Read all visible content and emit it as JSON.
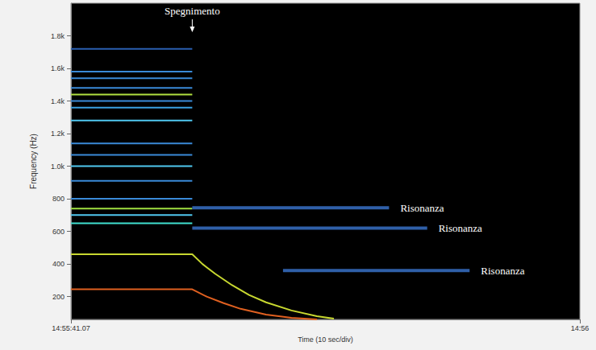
{
  "chart_data": {
    "type": "line",
    "xlabel": "Time (10 sec/div)",
    "ylabel": "Frequency (Hz)",
    "xlim": [
      0,
      60
    ],
    "xticks": [
      {
        "value": 0,
        "label": "14:55:41.07"
      },
      {
        "value": 60,
        "label": "14:56"
      }
    ],
    "ylim": [
      60,
      2000
    ],
    "yticks": [
      200,
      400,
      600,
      800,
      {
        "value": 1000,
        "label": "1.0k"
      },
      {
        "value": 1200,
        "label": "1.2k"
      },
      {
        "value": 1400,
        "label": "1.4k"
      },
      {
        "value": 1600,
        "label": "1.6k"
      },
      {
        "value": 1800,
        "label": "1.8k"
      }
    ],
    "grid": false,
    "annotations": [
      {
        "text": "Spegnimento",
        "x": 14.3
      }
    ],
    "series": [
      {
        "color": "#2a5fb0",
        "x": [
          0,
          14.3
        ],
        "values": [
          1720,
          1720
        ]
      },
      {
        "color": "#3a8ad8",
        "x": [
          0,
          14.3
        ],
        "values": [
          1580,
          1580
        ]
      },
      {
        "color": "#3a8ad8",
        "x": [
          0,
          14.3
        ],
        "values": [
          1540,
          1540
        ]
      },
      {
        "color": "#3a8ad8",
        "x": [
          0,
          14.3
        ],
        "values": [
          1480,
          1480
        ]
      },
      {
        "color": "#b0e040",
        "x": [
          0,
          14.3
        ],
        "values": [
          1440,
          1440
        ]
      },
      {
        "color": "#3a8ad8",
        "x": [
          0,
          14.3
        ],
        "values": [
          1400,
          1400
        ]
      },
      {
        "color": "#3aa0e0",
        "x": [
          0,
          14.3
        ],
        "values": [
          1360,
          1360
        ]
      },
      {
        "color": "#50c8f0",
        "x": [
          0,
          14.3
        ],
        "values": [
          1280,
          1280
        ]
      },
      {
        "color": "#3a8ad8",
        "x": [
          0,
          14.3
        ],
        "values": [
          1140,
          1140
        ]
      },
      {
        "color": "#3a8ad8",
        "x": [
          0,
          14.3
        ],
        "values": [
          1070,
          1070
        ]
      },
      {
        "color": "#50c8f0",
        "x": [
          0,
          14.3
        ],
        "values": [
          1000,
          1000
        ]
      },
      {
        "color": "#3a8ad8",
        "x": [
          0,
          14.3
        ],
        "values": [
          910,
          910
        ]
      },
      {
        "color": "#3a8ad8",
        "x": [
          0,
          14.3
        ],
        "values": [
          800,
          800
        ]
      },
      {
        "color": "#a0e040",
        "x": [
          0,
          14.3
        ],
        "values": [
          740,
          740
        ]
      },
      {
        "color": "#50c8f0",
        "x": [
          0,
          14.3
        ],
        "values": [
          700,
          700
        ]
      },
      {
        "color": "#40e0d0",
        "x": [
          0,
          14.3
        ],
        "values": [
          650,
          650
        ]
      },
      {
        "color": "#c8d830",
        "x": [
          0,
          14.3,
          15.5,
          17,
          19,
          21,
          23,
          26,
          29,
          31
        ],
        "values": [
          460,
          460,
          400,
          340,
          270,
          210,
          165,
          115,
          80,
          65
        ]
      },
      {
        "color": "#e06020",
        "x": [
          0,
          14.3,
          16,
          18,
          20,
          23,
          26,
          29
        ],
        "values": [
          245,
          245,
          200,
          160,
          125,
          90,
          70,
          60
        ]
      },
      {
        "label": "Risonanza",
        "color": "#3f7fe0",
        "x": [
          14.3,
          37.5
        ],
        "values": [
          745,
          745
        ]
      },
      {
        "label": "Risonanza",
        "color": "#3f7fe0",
        "x": [
          14.3,
          42
        ],
        "values": [
          620,
          620
        ]
      },
      {
        "label": "Risonanza",
        "color": "#3f7fe0",
        "x": [
          25,
          47
        ],
        "values": [
          360,
          360
        ]
      }
    ]
  }
}
